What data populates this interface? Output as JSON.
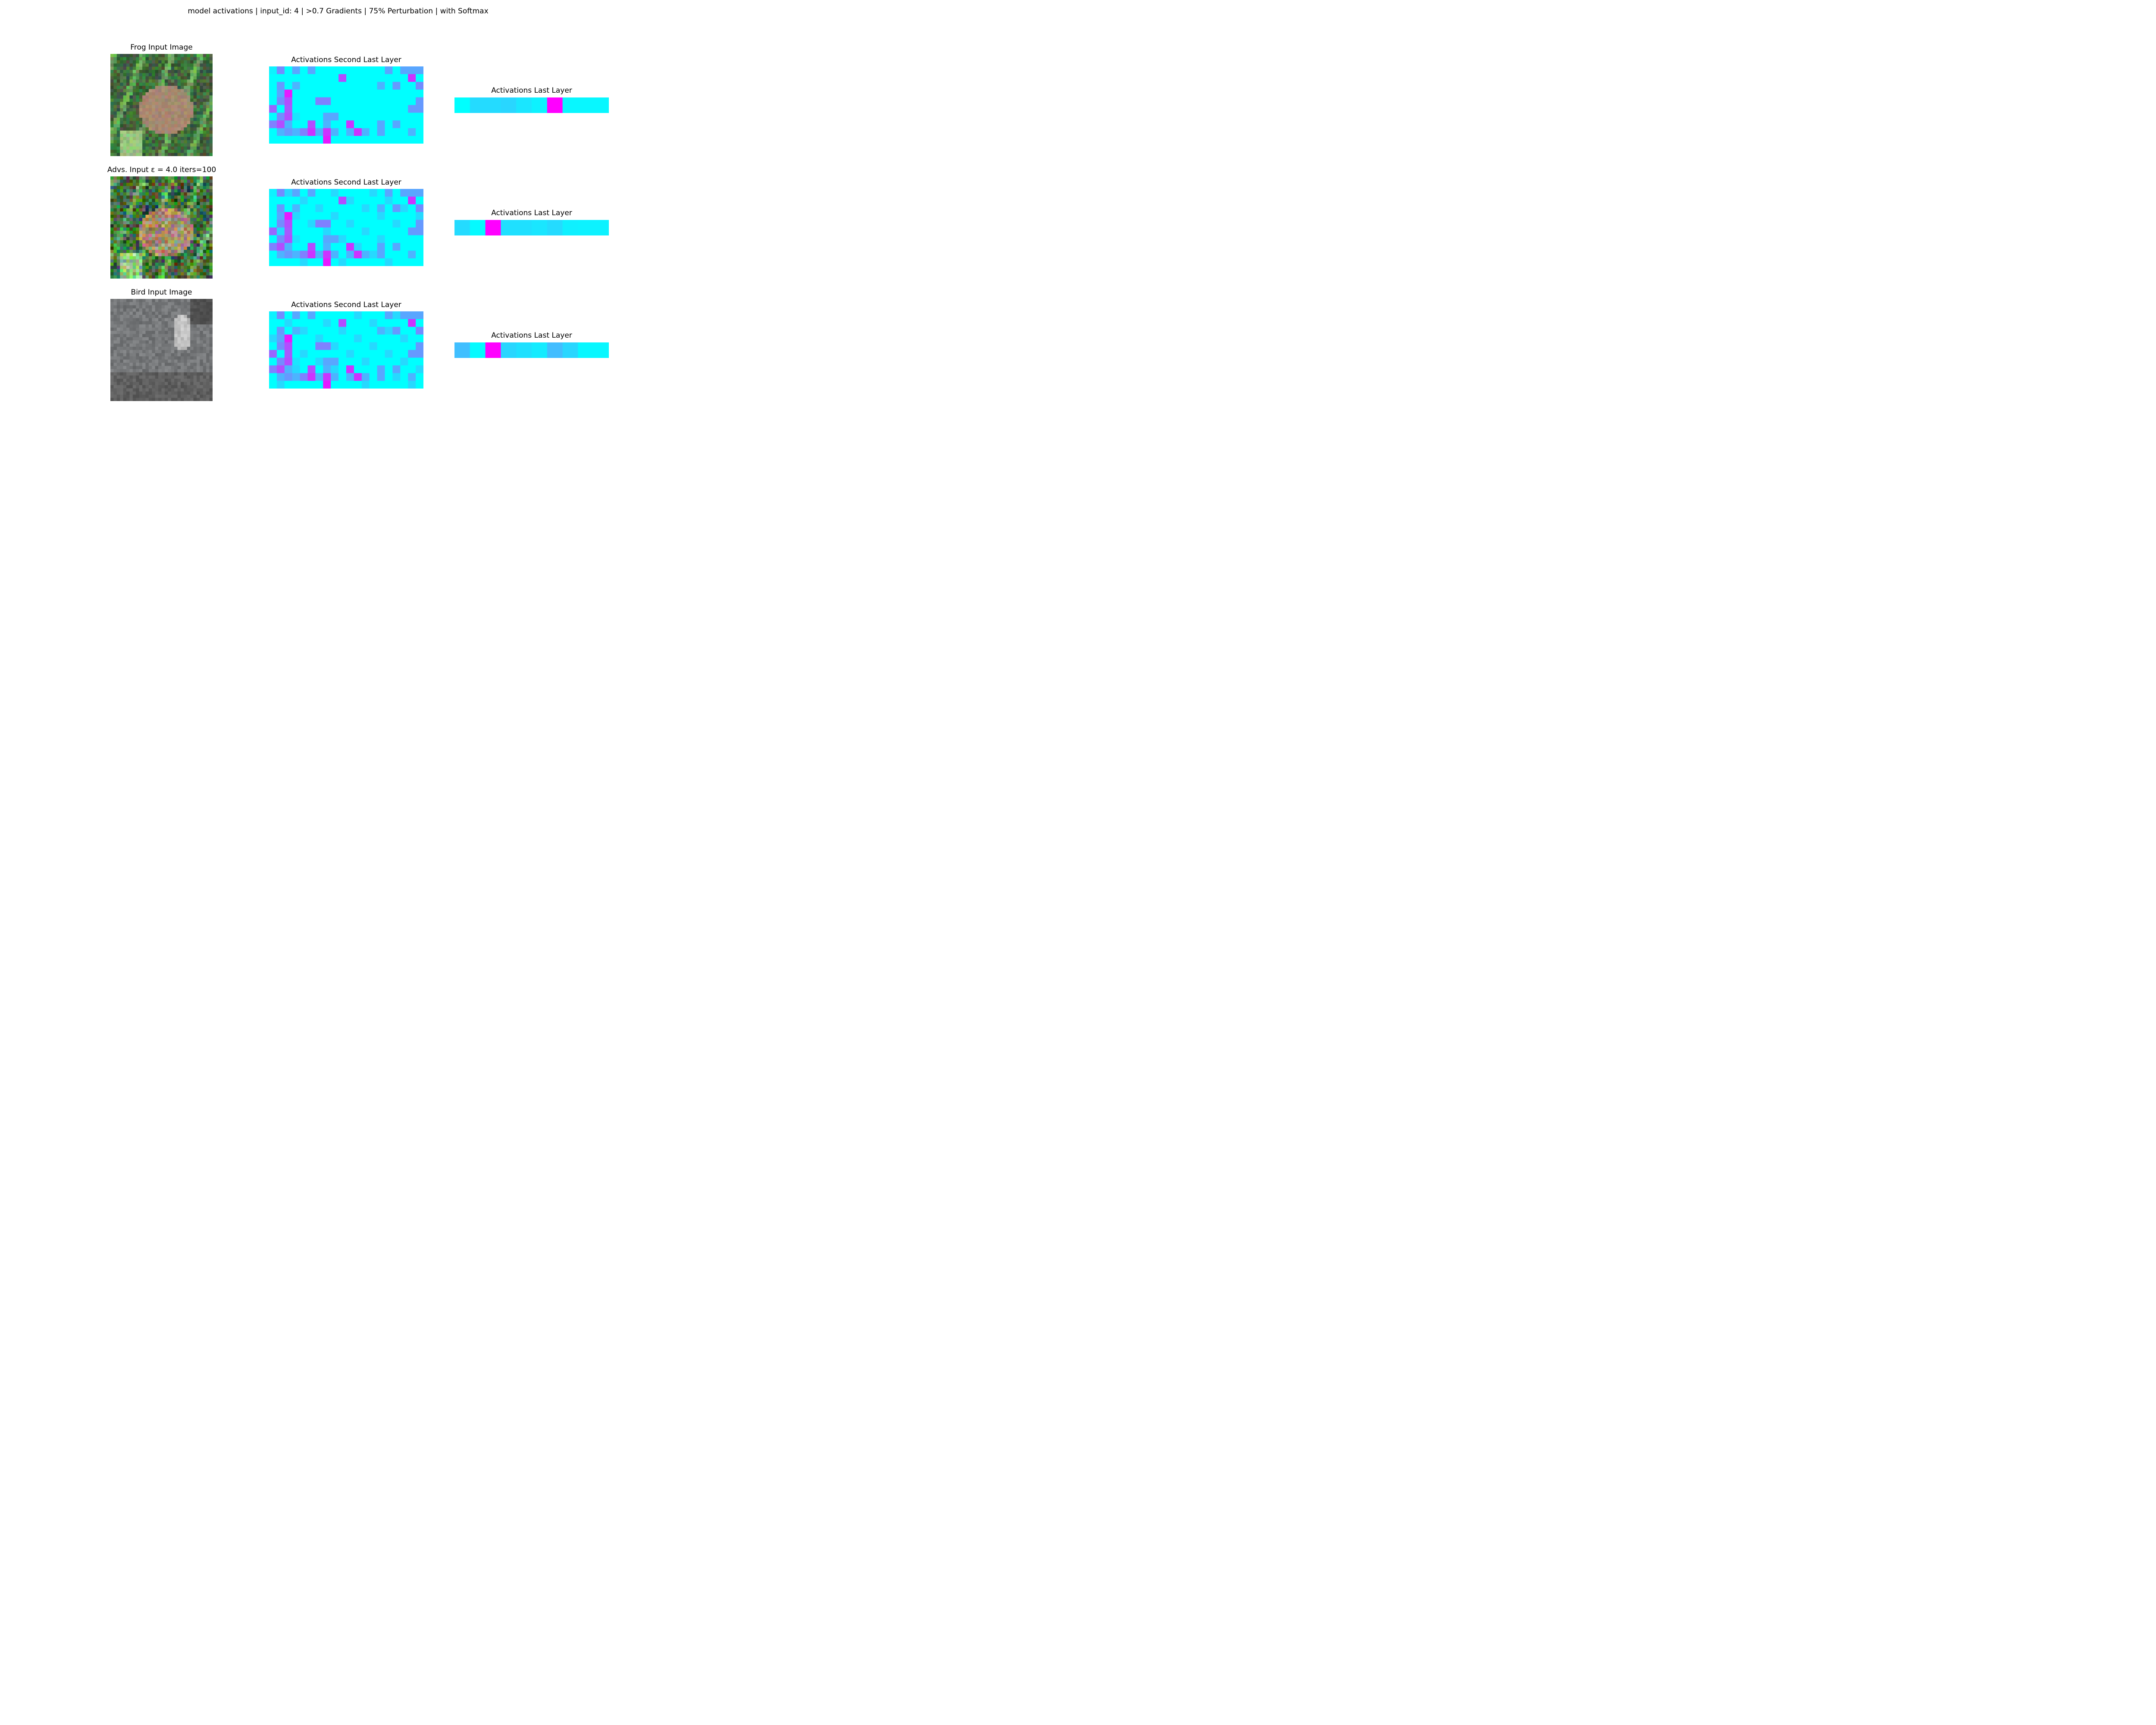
{
  "figure": {
    "suptitle": "model activations | input_id: 4 | >0.7 Gradients | 75% Perturbation | with Softmax"
  },
  "rows": [
    {
      "image_title": "Frog Input Image",
      "image_kind": "frog",
      "mid_title": "Activations Second Last Layer",
      "last_title": "Activations Last Layer"
    },
    {
      "image_title": "Advs. Input ε = 4.0 iters=100",
      "image_kind": "frog-noisy",
      "mid_title": "Activations Second Last Layer",
      "last_title": "Activations Last Layer"
    },
    {
      "image_title": "Bird Input Image",
      "image_kind": "bird",
      "mid_title": "Activations Second Last Layer",
      "last_title": "Activations Last Layer"
    }
  ],
  "colormap": {
    "low": "#00ffff",
    "high": "#ff00ff",
    "name": "cool"
  },
  "chart_data": [
    {
      "type": "heatmap",
      "title": "Activations Last Layer",
      "rows": 1,
      "cols": 10,
      "series": [
        {
          "values": [
            0.0,
            0.14,
            0.14,
            0.16,
            0.1,
            0.05,
            1.0,
            0.03,
            0.03,
            0.03
          ]
        },
        {
          "values": [
            0.14,
            0.02,
            1.0,
            0.12,
            0.12,
            0.1,
            0.14,
            0.06,
            0.05,
            0.05
          ]
        },
        {
          "values": [
            0.25,
            0.02,
            1.0,
            0.16,
            0.12,
            0.08,
            0.26,
            0.16,
            0.03,
            0.03
          ]
        }
      ]
    },
    {
      "type": "heatmap",
      "title": "Activations Second Last Layer",
      "rows": 10,
      "cols": 20,
      "series": [
        {
          "values": [
            [
              0.05,
              0.45,
              0,
              0.35,
              0,
              0.35,
              0,
              0,
              0,
              0,
              0,
              0,
              0,
              0,
              0,
              0.35,
              0,
              0.35,
              0.35,
              0.35
            ],
            [
              0,
              0,
              0,
              0,
              0,
              0,
              0,
              0,
              0,
              0.7,
              0,
              0,
              0,
              0,
              0,
              0,
              0,
              0,
              0.8,
              0
            ],
            [
              0,
              0.4,
              0,
              0.3,
              0,
              0,
              0,
              0,
              0,
              0,
              0,
              0,
              0,
              0,
              0.3,
              0,
              0.4,
              0,
              0,
              0.45
            ],
            [
              0,
              0.35,
              0.9,
              0,
              0,
              0,
              0,
              0,
              0,
              0,
              0,
              0,
              0,
              0,
              0,
              0,
              0,
              0,
              0,
              0
            ],
            [
              0,
              0.45,
              0.7,
              0,
              0,
              0,
              0.5,
              0.5,
              0,
              0,
              0,
              0,
              0,
              0,
              0,
              0,
              0,
              0,
              0,
              0.4
            ],
            [
              0.6,
              0,
              0.65,
              0,
              0,
              0,
              0,
              0,
              0,
              0,
              0,
              0,
              0,
              0,
              0,
              0,
              0,
              0,
              0.4,
              0.4
            ],
            [
              0,
              0.45,
              0.7,
              0.1,
              0,
              0,
              0,
              0.35,
              0.35,
              0,
              0,
              0,
              0,
              0,
              0,
              0,
              0,
              0,
              0,
              0
            ],
            [
              0.5,
              0.7,
              0.3,
              0,
              0,
              0.7,
              0,
              0.3,
              0,
              0,
              0.8,
              0,
              0,
              0,
              0.35,
              0,
              0.35,
              0,
              0,
              0
            ],
            [
              0,
              0.3,
              0.4,
              0.3,
              0.5,
              0.8,
              0.3,
              0.8,
              0.3,
              0,
              0.3,
              0.8,
              0.3,
              0,
              0.35,
              0,
              0,
              0,
              0.3,
              0
            ],
            [
              0,
              0,
              0,
              0,
              0,
              0,
              0,
              0.9,
              0,
              0,
              0,
              0,
              0,
              0,
              0,
              0,
              0,
              0,
              0,
              0
            ]
          ]
        }
      ]
    }
  ]
}
